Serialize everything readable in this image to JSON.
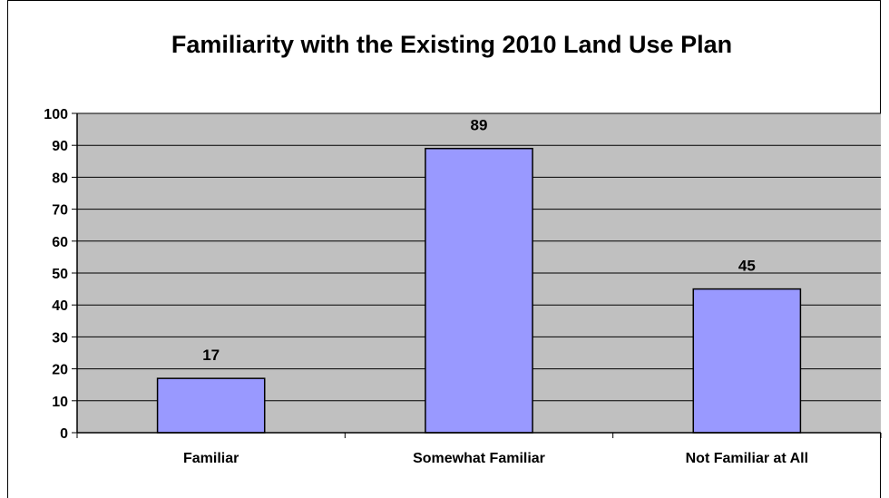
{
  "chart_data": {
    "type": "bar",
    "title": "Familiarity with the Existing 2010 Land Use Plan",
    "categories": [
      "Familiar",
      "Somewhat Familiar",
      "Not Familiar at All"
    ],
    "values": [
      17,
      89,
      45
    ],
    "data_labels": [
      "17",
      "89",
      "45"
    ],
    "ylim": [
      0,
      100
    ],
    "yticks": [
      0,
      10,
      20,
      30,
      40,
      50,
      60,
      70,
      80,
      90,
      100
    ],
    "xlabel": "",
    "ylabel": "",
    "grid": true,
    "legend": "none",
    "colors": {
      "bar_fill": "#9999ff",
      "bar_stroke": "#000000",
      "plot_background": "#c0c0c0",
      "gridline": "#000000"
    }
  }
}
